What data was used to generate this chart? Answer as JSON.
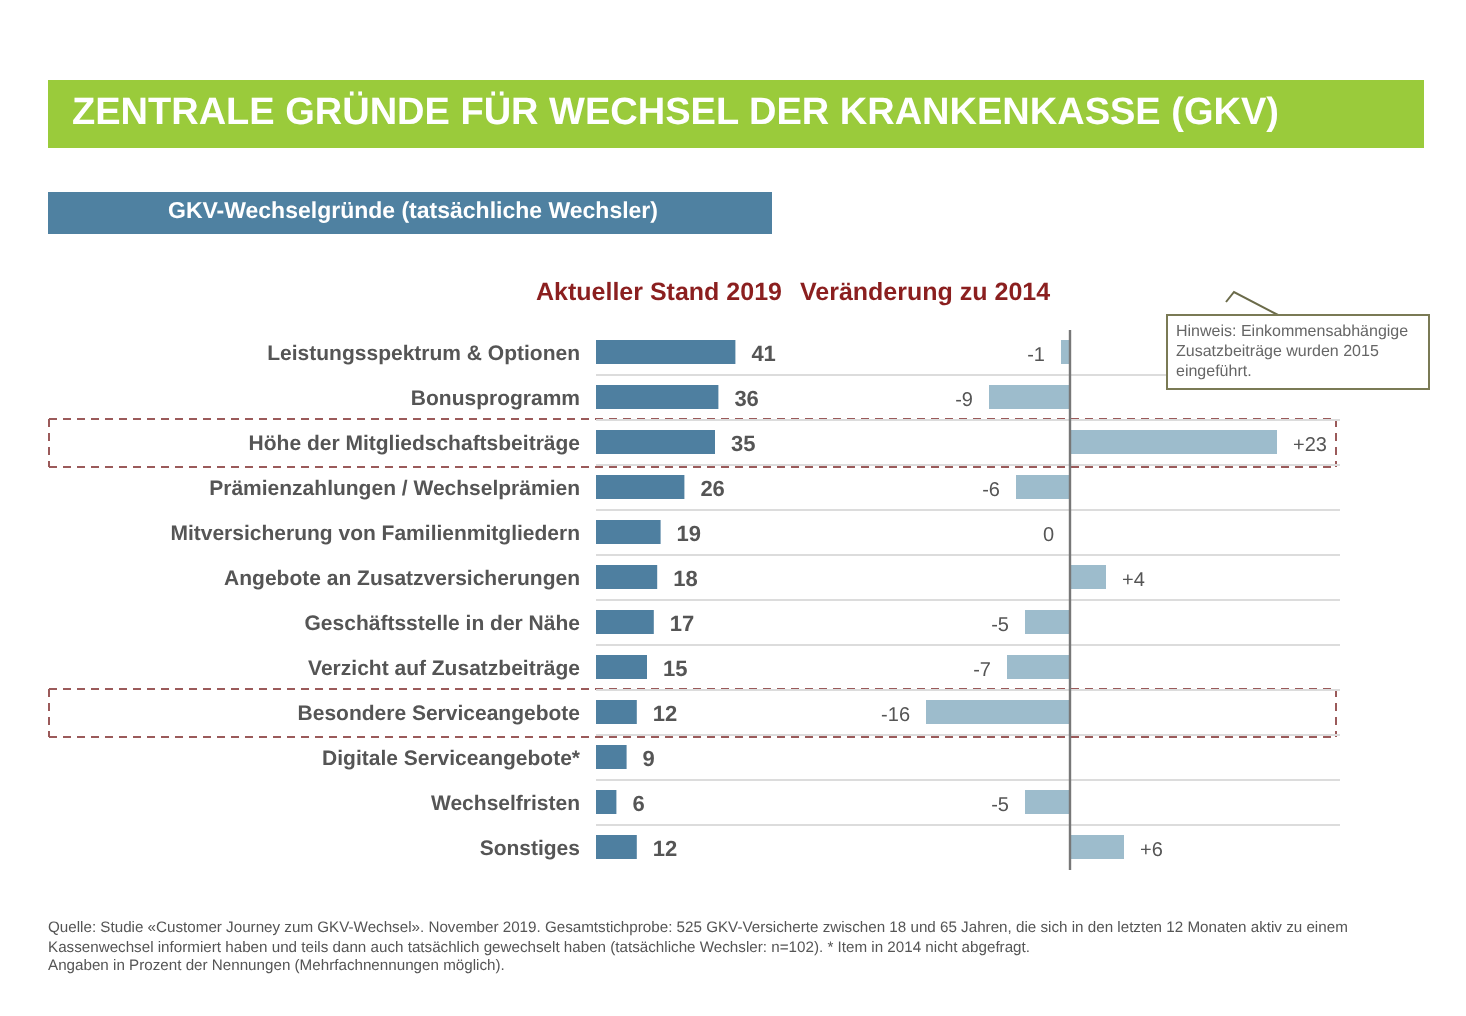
{
  "chart_data": [
    {
      "type": "bar",
      "orientation": "horizontal",
      "title": "ZENTRALE GRÜNDE FÜR WECHSEL DER KRANKENKASSE (GKV)",
      "subtitle": "GKV-Wechselgründe (tatsächliche Wechsler)",
      "xlabel": "Aktueller Stand 2019",
      "categories": [
        "Leistungsspektrum & Optionen",
        "Bonusprogramm",
        "Höhe der Mitgliedschaftsbeiträge",
        "Prämienzahlungen / Wechselprämien",
        "Mitversicherung von Familienmitgliedern",
        "Angebote an Zusatzversicherungen",
        "Geschäftsstelle in der Nähe",
        "Verzicht auf Zusatzbeiträge",
        "Besondere Serviceangebote",
        "Digitale Serviceangebote*",
        "Wechselfristen",
        "Sonstiges"
      ],
      "values": [
        41,
        36,
        35,
        26,
        19,
        18,
        17,
        15,
        12,
        9,
        6,
        12
      ],
      "color": "#4e7fa0",
      "xlim": [
        0,
        60
      ],
      "tick_labels": "y",
      "data_labels": true,
      "grid": "y",
      "annotations": [
        "Quelle: Studie «Customer Journey zum GKV-Wechsel». November 2019. Gesamtstichprobe: 525 GKV-Versicherte zwischen 18 und 65 Jahren, die sich in den letzten 12 Monaten aktiv zu einem Kassenwechsel informiert haben und teils dann auch tatsächlich gewechselt haben (tatsächliche Wechsler: n=102). * Item in 2014 nicht abgefragt.",
        "Angaben in Prozent der Nennungen (Mehrfachnennungen möglich)."
      ]
    },
    {
      "type": "bar",
      "orientation": "horizontal",
      "xlabel": "Veränderung zu 2014",
      "categories": [
        null,
        null,
        null,
        null,
        null,
        null,
        null,
        null,
        null,
        null,
        null,
        null
      ],
      "values": [
        -1,
        -9,
        23,
        -6,
        0,
        4,
        -5,
        -7,
        -16,
        null,
        -5,
        6
      ],
      "color": "#9dbccc",
      "value_labels": [
        "-1",
        "-9",
        "+23",
        "-6",
        "0",
        "+4",
        "-5",
        "-7",
        "-16",
        null,
        "-5",
        "+6"
      ],
      "xlim": [
        -30,
        30
      ],
      "tick_labels": false,
      "grid": "y",
      "ref_lines": [
        {
          "axis": "x",
          "value": 0,
          "color": "#777777"
        }
      ],
      "annotations": [
        "Hinweis: Einkommensabhängige Zusatzbeiträge wurden 2015 eingeführt."
      ]
    }
  ]
}
